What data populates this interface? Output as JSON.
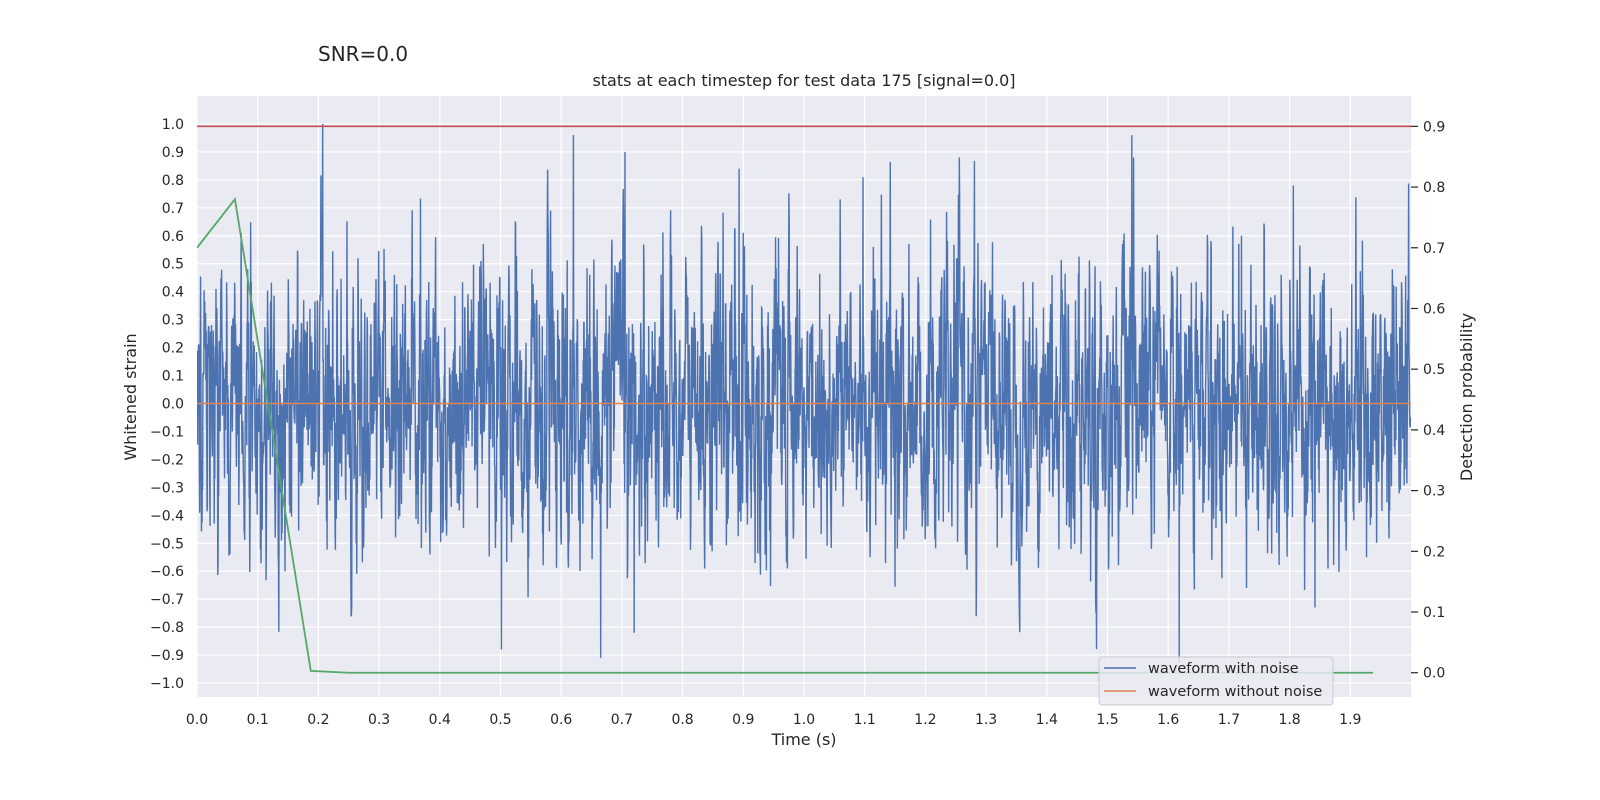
{
  "suptitle": "SNR=0.0",
  "chart_data": {
    "type": "line",
    "title": "stats at each timestep for test data 175 [signal=0.0]",
    "xlabel": "Time (s)",
    "ylabel": "Whitened strain",
    "ylabel_right": "Detection probability",
    "xlim": [
      0.0,
      2.0
    ],
    "ylim": [
      -1.05,
      1.1
    ],
    "ylim_right": [
      -0.04,
      0.95
    ],
    "x_ticks": [
      "0.0",
      "0.1",
      "0.2",
      "0.3",
      "0.4",
      "0.5",
      "0.6",
      "0.7",
      "0.8",
      "0.9",
      "1.0",
      "1.1",
      "1.2",
      "1.3",
      "1.4",
      "1.5",
      "1.6",
      "1.7",
      "1.8",
      "1.9"
    ],
    "y_ticks": [
      "1.0",
      "0.9",
      "0.8",
      "0.7",
      "0.6",
      "0.5",
      "0.4",
      "0.3",
      "0.2",
      "0.1",
      "0.0",
      "−0.1",
      "−0.2",
      "−0.3",
      "−0.4",
      "−0.5",
      "−0.6",
      "−0.7",
      "−0.8",
      "−0.9",
      "−1.0"
    ],
    "y_ticks_right": [
      "0.9",
      "0.8",
      "0.7",
      "0.6",
      "0.5",
      "0.4",
      "0.3",
      "0.2",
      "0.1",
      "0.0"
    ],
    "grid": true,
    "legend_position": "lower-right",
    "threshold": {
      "value": 0.9,
      "axis": "right",
      "color": "#c44e52"
    },
    "series": [
      {
        "name": "waveform with noise",
        "axis": "left",
        "color": "#4c72b0",
        "sample_rate": 2048,
        "noise_sigma": 0.25,
        "peaks": [
          {
            "x": 0.207,
            "y": 1.0
          },
          {
            "x": 0.62,
            "y": 0.96
          },
          {
            "x": 0.665,
            "y": -0.91
          },
          {
            "x": 0.705,
            "y": 0.9
          },
          {
            "x": 0.72,
            "y": -0.82
          },
          {
            "x": 0.893,
            "y": 0.84
          },
          {
            "x": 1.097,
            "y": 0.81
          },
          {
            "x": 1.54,
            "y": 0.96
          },
          {
            "x": 1.618,
            "y": -0.93
          },
          {
            "x": 1.806,
            "y": 0.78
          },
          {
            "x": 1.842,
            "y": -0.73
          }
        ]
      },
      {
        "name": "waveform without noise",
        "axis": "left",
        "color": "#dd8452",
        "x": [
          0.0,
          2.0
        ],
        "y": [
          0.0,
          0.0
        ]
      },
      {
        "name": "",
        "axis": "right",
        "color": "#55a868",
        "x": [
          0.0,
          0.0625,
          0.1875,
          0.25,
          0.5,
          1.0,
          1.5,
          1.9375
        ],
        "y": [
          0.7,
          0.78,
          0.003,
          0.0,
          0.0,
          0.0,
          0.0,
          0.0
        ]
      }
    ]
  }
}
